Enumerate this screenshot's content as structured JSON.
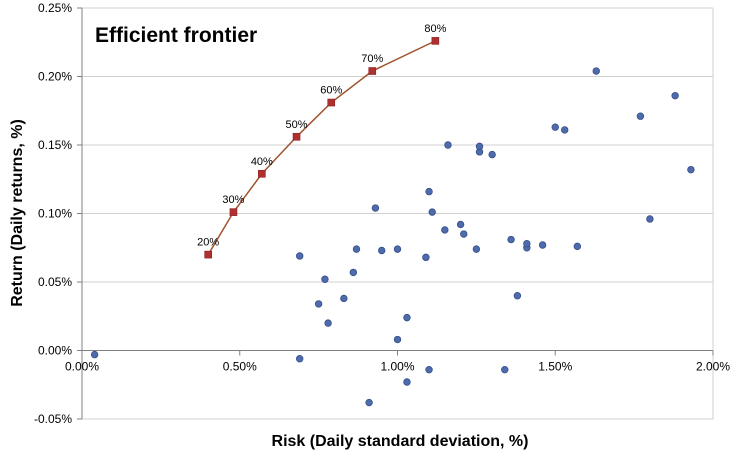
{
  "chart_data": {
    "type": "scatter",
    "title": "Efficient frontier",
    "xlabel": "Risk (Daily standard deviation, %)",
    "ylabel": "Return (Daily returns, %)",
    "xlim": [
      0.0,
      2.0
    ],
    "ylim": [
      -0.05,
      0.25
    ],
    "x_ticks": [
      "0.00%",
      "0.50%",
      "1.00%",
      "1.50%",
      "2.00%"
    ],
    "y_ticks": [
      "-0.05%",
      "0.00%",
      "0.05%",
      "0.10%",
      "0.15%",
      "0.20%",
      "0.25%"
    ],
    "grid": "horizontal",
    "colors": {
      "frontier_line": "#a0522d",
      "frontier_marker": "#b03030",
      "scatter_marker": "#4f6bab",
      "grid": "#d0d0d0"
    },
    "series": [
      {
        "kind": "line-markers",
        "points": [
          {
            "x": 0.4,
            "y": 0.07,
            "label": "20%"
          },
          {
            "x": 0.48,
            "y": 0.101,
            "label": "30%"
          },
          {
            "x": 0.57,
            "y": 0.129,
            "label": "40%"
          },
          {
            "x": 0.68,
            "y": 0.156,
            "label": "50%"
          },
          {
            "x": 0.79,
            "y": 0.181,
            "label": "60%"
          },
          {
            "x": 0.92,
            "y": 0.204,
            "label": "70%"
          },
          {
            "x": 1.12,
            "y": 0.226,
            "label": "80%"
          }
        ]
      },
      {
        "kind": "scatter",
        "points": [
          {
            "x": 0.04,
            "y": -0.003
          },
          {
            "x": 0.69,
            "y": 0.069
          },
          {
            "x": 0.69,
            "y": -0.006
          },
          {
            "x": 0.75,
            "y": 0.034
          },
          {
            "x": 0.77,
            "y": 0.052
          },
          {
            "x": 0.78,
            "y": 0.02
          },
          {
            "x": 0.83,
            "y": 0.038
          },
          {
            "x": 0.86,
            "y": 0.057
          },
          {
            "x": 0.87,
            "y": 0.074
          },
          {
            "x": 0.91,
            "y": -0.038
          },
          {
            "x": 0.93,
            "y": 0.104
          },
          {
            "x": 0.95,
            "y": 0.073
          },
          {
            "x": 1.0,
            "y": 0.074
          },
          {
            "x": 1.0,
            "y": 0.008
          },
          {
            "x": 1.03,
            "y": 0.024
          },
          {
            "x": 1.03,
            "y": -0.023
          },
          {
            "x": 1.09,
            "y": 0.068
          },
          {
            "x": 1.1,
            "y": 0.116
          },
          {
            "x": 1.1,
            "y": -0.014
          },
          {
            "x": 1.11,
            "y": 0.101
          },
          {
            "x": 1.15,
            "y": 0.088
          },
          {
            "x": 1.16,
            "y": 0.15
          },
          {
            "x": 1.2,
            "y": 0.092
          },
          {
            "x": 1.21,
            "y": 0.085
          },
          {
            "x": 1.25,
            "y": 0.074
          },
          {
            "x": 1.26,
            "y": 0.145
          },
          {
            "x": 1.26,
            "y": 0.149
          },
          {
            "x": 1.3,
            "y": 0.143
          },
          {
            "x": 1.34,
            "y": -0.014
          },
          {
            "x": 1.36,
            "y": 0.081
          },
          {
            "x": 1.38,
            "y": 0.04
          },
          {
            "x": 1.41,
            "y": 0.075
          },
          {
            "x": 1.41,
            "y": 0.078
          },
          {
            "x": 1.46,
            "y": 0.077
          },
          {
            "x": 1.5,
            "y": 0.163
          },
          {
            "x": 1.53,
            "y": 0.161
          },
          {
            "x": 1.57,
            "y": 0.076
          },
          {
            "x": 1.63,
            "y": 0.204
          },
          {
            "x": 1.77,
            "y": 0.171
          },
          {
            "x": 1.8,
            "y": 0.096
          },
          {
            "x": 1.88,
            "y": 0.186
          },
          {
            "x": 1.93,
            "y": 0.132
          }
        ]
      }
    ]
  }
}
